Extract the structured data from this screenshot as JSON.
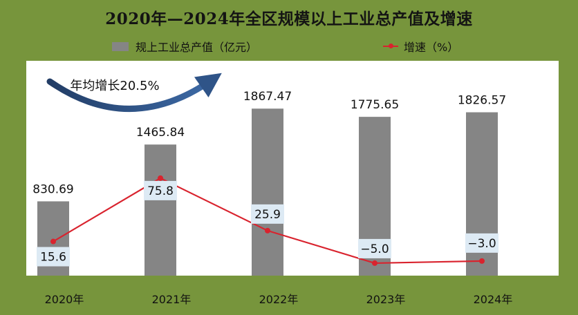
{
  "chart_data": {
    "type": "bar",
    "title": "2020年—2024年全区规模以上工业总产值及增速",
    "categories": [
      "2020年",
      "2021年",
      "2022年",
      "2023年",
      "2024年"
    ],
    "series": [
      {
        "name": "规上工业总产值（亿元）",
        "type": "bar",
        "color": "#858585",
        "values": [
          830.69,
          1465.84,
          1867.47,
          1775.65,
          1826.57
        ]
      },
      {
        "name": "增速（%）",
        "type": "line",
        "color": "#d9232e",
        "values": [
          15.6,
          75.8,
          25.9,
          -5.0,
          -3.0
        ]
      }
    ],
    "bar_labels": [
      "830.69",
      "1465.84",
      "1867.47",
      "1775.65",
      "1826.57"
    ],
    "line_labels": [
      "15.6",
      "75.8",
      "25.9",
      "−5.0",
      "−3.0"
    ],
    "bar_ylim": [
      0,
      2000
    ],
    "line_ylim": [
      -10,
      100
    ],
    "annotation": "年均增长20.5%",
    "legend_position": "top",
    "grid": false,
    "background_color": "#77953c",
    "label_box_color": "#ddeaf4"
  }
}
